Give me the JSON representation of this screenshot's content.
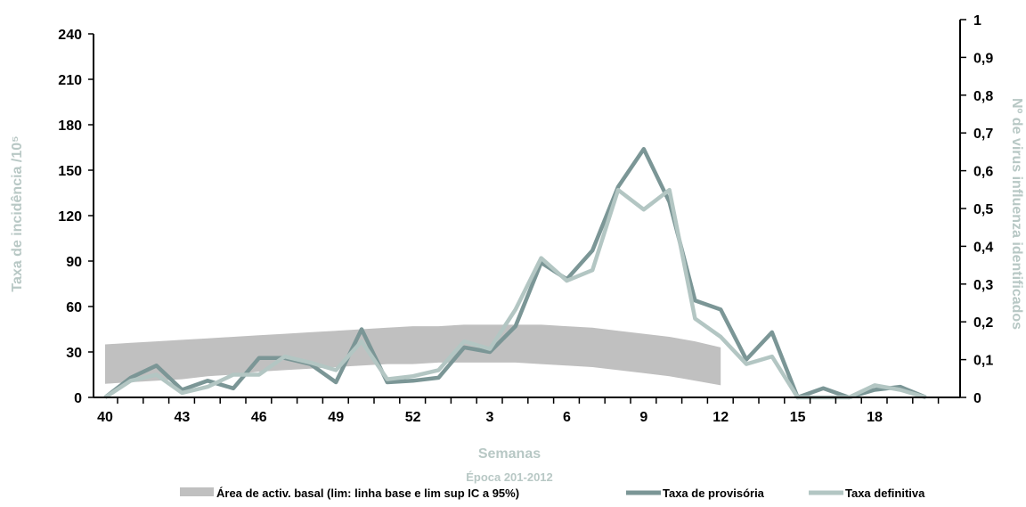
{
  "chart_data": {
    "type": "line",
    "xlabel": "Semanas",
    "subtitle": "Época 201-2012",
    "ylabel_left": "Taxa de incidência /10⁵",
    "ylabel_right": "Nº de virus influenza identificados",
    "ylim_left": [
      0,
      240
    ],
    "ylim_right": [
      0,
      1
    ],
    "yticks_left": [
      "0",
      "30",
      "60",
      "90",
      "120",
      "150",
      "180",
      "210",
      "240"
    ],
    "yticks_right": [
      "0",
      "0,1",
      "0,2",
      "0,3",
      "0,4",
      "0,5",
      "0,6",
      "0,7",
      "0,8",
      "0,9",
      "1"
    ],
    "x_tick_labels": [
      "40",
      "43",
      "46",
      "49",
      "52",
      "3",
      "6",
      "9",
      "12",
      "15",
      "18"
    ],
    "weeks": [
      "40",
      "41",
      "42",
      "43",
      "44",
      "45",
      "46",
      "47",
      "48",
      "49",
      "50",
      "51",
      "52",
      "1",
      "2",
      "3",
      "4",
      "5",
      "6",
      "7",
      "8",
      "9",
      "10",
      "11",
      "12",
      "13",
      "14",
      "15",
      "16",
      "17",
      "18",
      "19",
      "20"
    ],
    "series": [
      {
        "name": "Área de activ. basal (lim: linha base e lim sup IC a 95%)",
        "kind": "band",
        "color": "#c0c0c0",
        "lower": [
          9,
          10,
          11,
          12,
          14,
          15,
          17,
          18,
          19,
          20,
          21,
          22,
          22,
          23,
          23,
          23,
          23,
          22,
          21,
          20,
          18,
          16,
          14,
          11,
          8
        ],
        "upper": [
          35,
          36,
          37,
          38,
          39,
          40,
          41,
          42,
          43,
          44,
          45,
          46,
          47,
          47,
          48,
          48,
          48,
          48,
          47,
          46,
          44,
          42,
          40,
          37,
          33
        ]
      },
      {
        "name": "Taxa de provisória",
        "kind": "line",
        "color": "#7b9696",
        "values": [
          0,
          13,
          21,
          5,
          11,
          6,
          26,
          26,
          22,
          10,
          45,
          10,
          11,
          13,
          33,
          30,
          47,
          89,
          78,
          97,
          139,
          164,
          129,
          64,
          58,
          25,
          43,
          0,
          6,
          0,
          5,
          7,
          0
        ]
      },
      {
        "name": "Taxa definitiva",
        "kind": "line",
        "color": "#b3c6c3",
        "values": [
          0,
          11,
          15,
          3,
          7,
          15,
          15,
          27,
          23,
          18,
          37,
          12,
          14,
          18,
          37,
          32,
          58,
          92,
          77,
          84,
          137,
          124,
          137,
          52,
          40,
          22,
          27,
          0,
          0,
          0,
          8,
          5,
          0
        ]
      }
    ],
    "legend_position": "bottom",
    "grid": false
  }
}
